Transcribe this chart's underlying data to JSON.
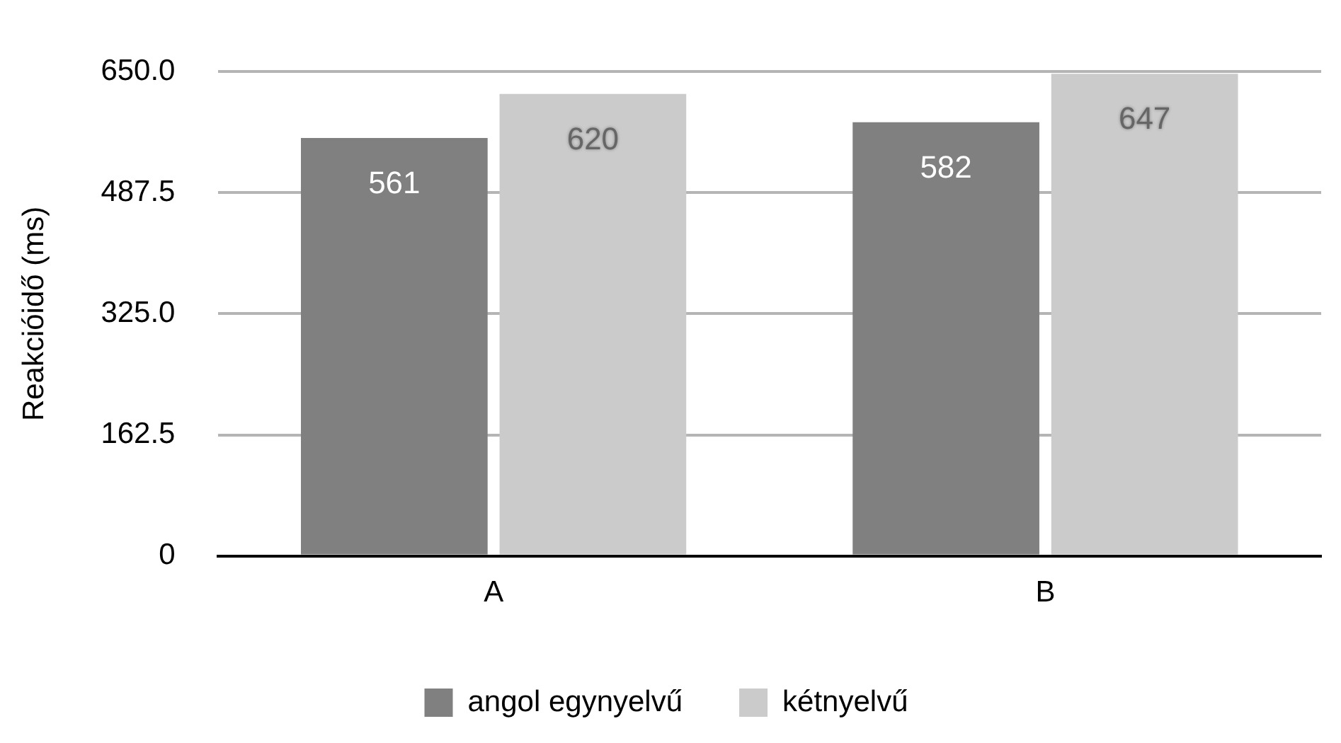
{
  "chart_data": {
    "type": "bar",
    "ylabel": "Reakcióidő (ms)",
    "categories": [
      "A",
      "B"
    ],
    "series": [
      {
        "name": "angol egynyelvű",
        "color": "#808080",
        "values": [
          561,
          582
        ]
      },
      {
        "name": "kétnyelvű",
        "color": "#cbcbcb",
        "values": [
          620,
          647
        ]
      }
    ],
    "ylim": [
      0,
      650
    ],
    "yticks": [
      0,
      {
        "value": 162.5,
        "label": "162.5"
      },
      {
        "value": 325,
        "label": "325.0"
      },
      {
        "value": 487.5,
        "label": "487.5"
      },
      {
        "value": 650,
        "label": "650.0"
      }
    ],
    "grid": "y",
    "legend": "bottom",
    "data_labels": true
  }
}
